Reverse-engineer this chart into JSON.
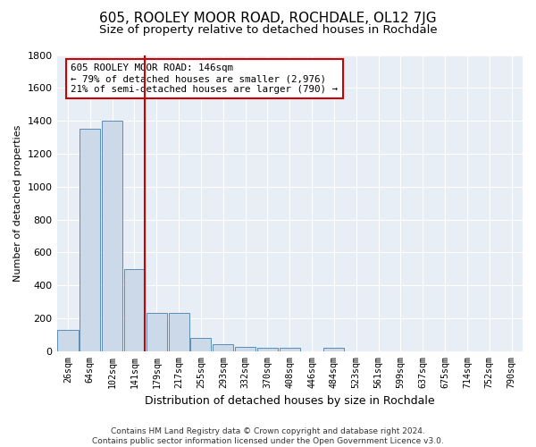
{
  "title": "605, ROOLEY MOOR ROAD, ROCHDALE, OL12 7JG",
  "subtitle": "Size of property relative to detached houses in Rochdale",
  "xlabel": "Distribution of detached houses by size in Rochdale",
  "ylabel": "Number of detached properties",
  "categories": [
    "26sqm",
    "64sqm",
    "102sqm",
    "141sqm",
    "179sqm",
    "217sqm",
    "255sqm",
    "293sqm",
    "332sqm",
    "370sqm",
    "408sqm",
    "446sqm",
    "484sqm",
    "523sqm",
    "561sqm",
    "599sqm",
    "637sqm",
    "675sqm",
    "714sqm",
    "752sqm",
    "790sqm"
  ],
  "values": [
    130,
    1350,
    1400,
    500,
    230,
    230,
    80,
    40,
    25,
    20,
    20,
    0,
    20,
    0,
    0,
    0,
    0,
    0,
    0,
    0,
    0
  ],
  "bar_color": "#ccd9e8",
  "bar_edge_color": "#5b8db8",
  "vline_color": "#cc0000",
  "vline_pos": 3.48,
  "annotation_text": "605 ROOLEY MOOR ROAD: 146sqm\n← 79% of detached houses are smaller (2,976)\n21% of semi-detached houses are larger (790) →",
  "annotation_box_facecolor": "#ffffff",
  "annotation_box_edgecolor": "#cc0000",
  "ylim": [
    0,
    1800
  ],
  "yticks": [
    0,
    200,
    400,
    600,
    800,
    1000,
    1200,
    1400,
    1600,
    1800
  ],
  "footnote": "Contains HM Land Registry data © Crown copyright and database right 2024.\nContains public sector information licensed under the Open Government Licence v3.0.",
  "bg_color": "#e8eef5",
  "title_fontsize": 11,
  "subtitle_fontsize": 9.5,
  "bar_width": 0.93
}
